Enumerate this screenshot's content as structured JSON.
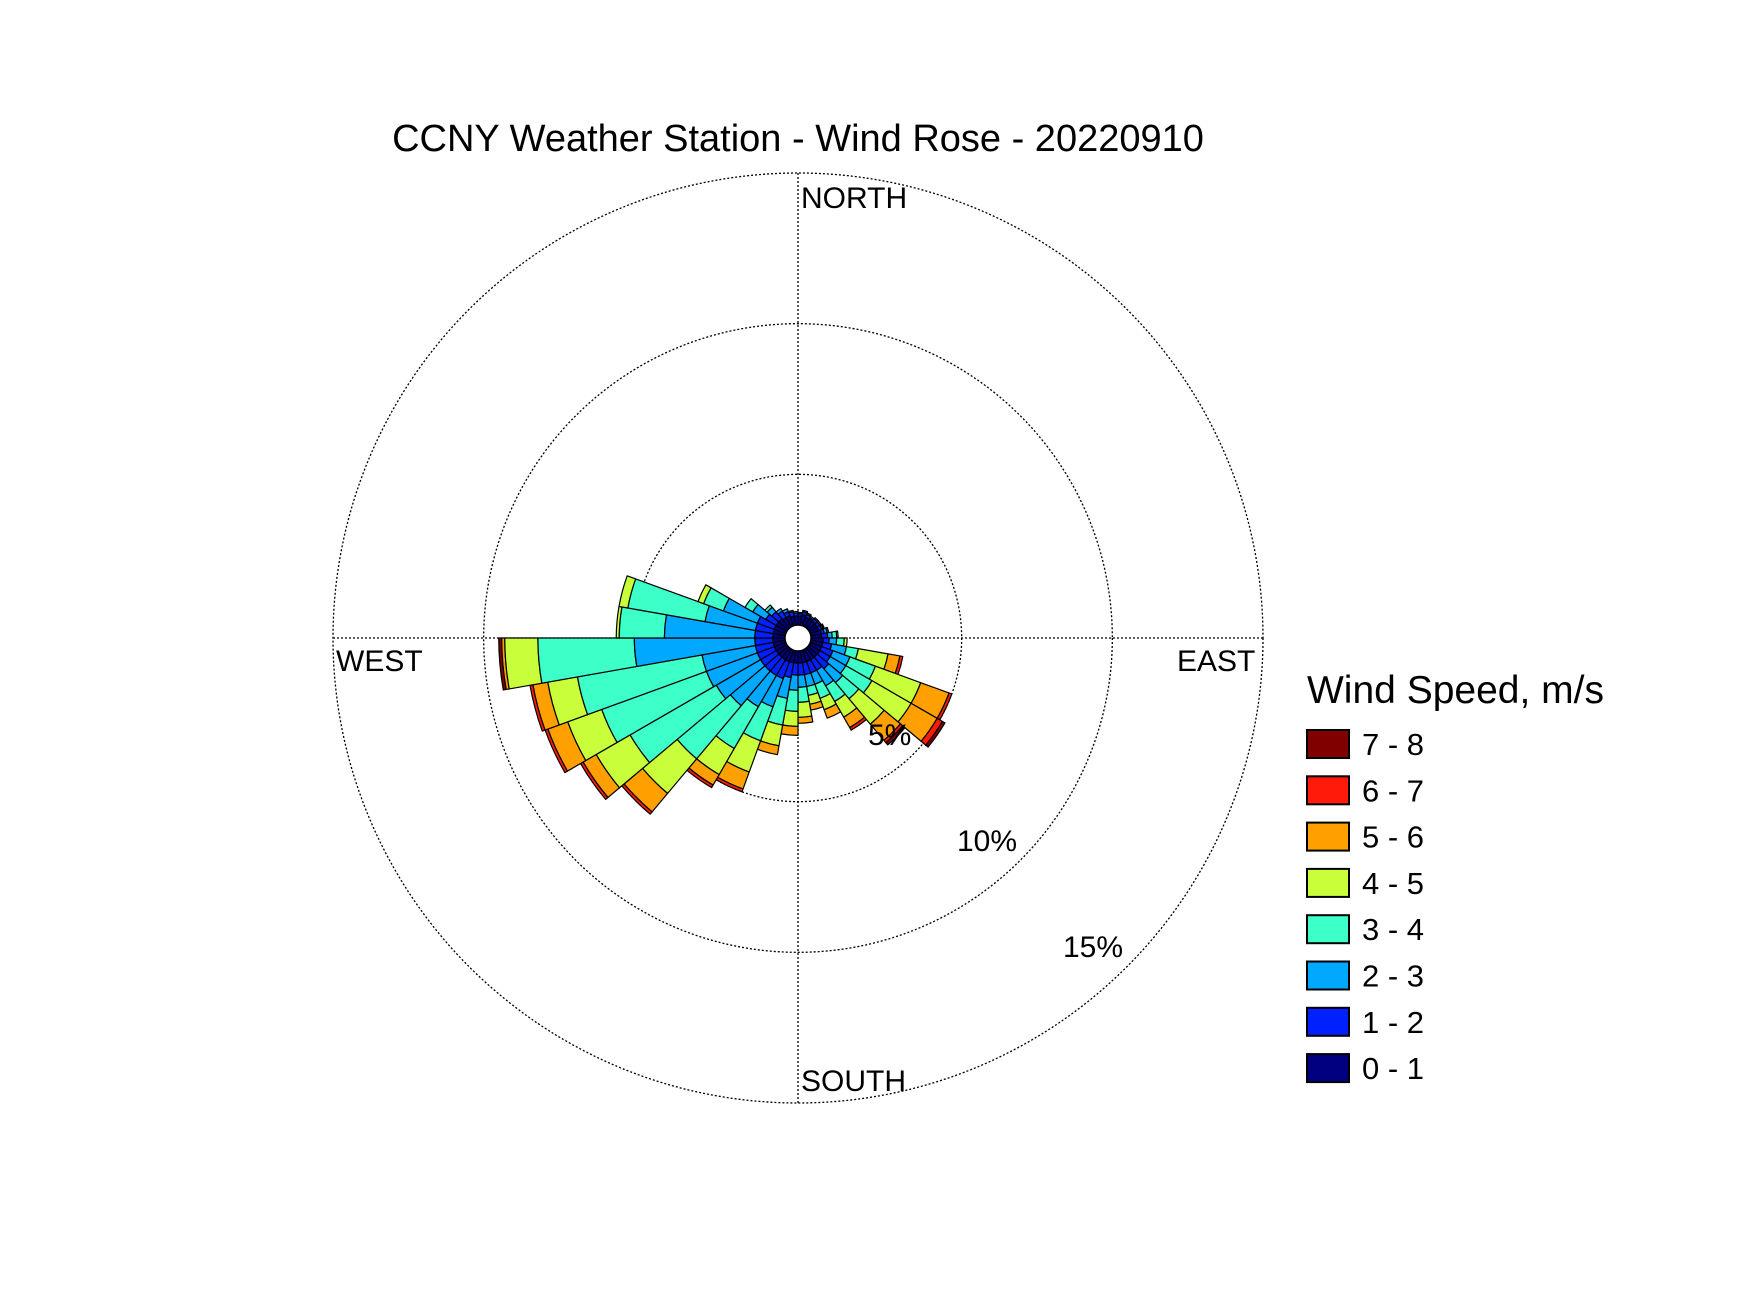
{
  "chart_data": {
    "type": "wind-rose",
    "title": "CCNY Weather Station - Wind Rose - 20220910",
    "direction_labels": {
      "north": "NORTH",
      "east": "EAST",
      "south": "SOUTH",
      "west": "WEST"
    },
    "radial_ticks": [
      {
        "value": 5,
        "label": "5%"
      },
      {
        "value": 10,
        "label": "10%"
      },
      {
        "value": 15,
        "label": "15%"
      }
    ],
    "rmax": 15,
    "grid": true,
    "legend": {
      "title": "Wind Speed, m/s",
      "position": "right",
      "bins": [
        {
          "label": "7 - 8",
          "color": "#800000"
        },
        {
          "label": "6 - 7",
          "color": "#ff1a0a"
        },
        {
          "label": "5 - 6",
          "color": "#ffa000"
        },
        {
          "label": "4 - 5",
          "color": "#c8ff3a"
        },
        {
          "label": "3 - 4",
          "color": "#3dffc8"
        },
        {
          "label": "2 - 3",
          "color": "#00a8ff"
        },
        {
          "label": "1 - 2",
          "color": "#0020ff"
        },
        {
          "label": "0 - 1",
          "color": "#000080"
        }
      ]
    },
    "bin_colors": [
      "#000080",
      "#0020ff",
      "#00a8ff",
      "#3dffc8",
      "#c8ff3a",
      "#ffa000",
      "#ff1a0a",
      "#800000"
    ],
    "sector_width_deg": 10,
    "sectors": [
      {
        "dir": 5,
        "cumulative": [
          0.3,
          0.38,
          0.42,
          0.42,
          0.42,
          0.42,
          0.42,
          0.42
        ]
      },
      {
        "dir": 15,
        "cumulative": [
          0.35,
          0.45,
          0.5,
          0.5,
          0.5,
          0.5,
          0.5,
          0.5
        ]
      },
      {
        "dir": 25,
        "cumulative": [
          0.3,
          0.4,
          0.45,
          0.45,
          0.45,
          0.45,
          0.45,
          0.45
        ]
      },
      {
        "dir": 35,
        "cumulative": [
          0.3,
          0.35,
          0.4,
          0.4,
          0.4,
          0.4,
          0.4,
          0.4
        ]
      },
      {
        "dir": 45,
        "cumulative": [
          0.3,
          0.4,
          0.45,
          0.45,
          0.45,
          0.45,
          0.45,
          0.45
        ]
      },
      {
        "dir": 55,
        "cumulative": [
          0.3,
          0.4,
          0.45,
          0.45,
          0.45,
          0.45,
          0.45,
          0.45
        ]
      },
      {
        "dir": 65,
        "cumulative": [
          0.3,
          0.4,
          0.45,
          0.48,
          0.5,
          0.5,
          0.5,
          0.5
        ]
      },
      {
        "dir": 75,
        "cumulative": [
          0.35,
          0.45,
          0.55,
          0.6,
          0.6,
          0.6,
          0.6,
          0.6
        ]
      },
      {
        "dir": 85,
        "cumulative": [
          0.35,
          0.55,
          0.7,
          0.85,
          0.9,
          0.9,
          0.9,
          0.9
        ]
      },
      {
        "dir": 95,
        "cumulative": [
          0.4,
          0.6,
          0.85,
          1.1,
          1.2,
          1.2,
          1.2,
          1.2
        ]
      },
      {
        "dir": 105,
        "cumulative": [
          0.4,
          0.7,
          1.2,
          1.6,
          2.6,
          3.0,
          3.1,
          3.1
        ]
      },
      {
        "dir": 115,
        "cumulative": [
          0.4,
          0.8,
          1.4,
          2.3,
          3.9,
          4.9,
          5.0,
          5.0
        ]
      },
      {
        "dir": 125,
        "cumulative": [
          0.4,
          0.8,
          1.4,
          2.4,
          3.9,
          4.9,
          5.1,
          5.2
        ]
      },
      {
        "dir": 135,
        "cumulative": [
          0.4,
          0.9,
          1.5,
          2.2,
          3.3,
          4.0,
          4.1,
          4.2
        ]
      },
      {
        "dir": 145,
        "cumulative": [
          0.4,
          0.8,
          1.4,
          2.0,
          2.6,
          3.0,
          3.1,
          3.1
        ]
      },
      {
        "dir": 155,
        "cumulative": [
          0.4,
          0.8,
          1.2,
          1.7,
          2.1,
          2.4,
          2.4,
          2.4
        ]
      },
      {
        "dir": 165,
        "cumulative": [
          0.4,
          0.8,
          1.2,
          1.5,
          1.8,
          2.0,
          2.0,
          2.0
        ]
      },
      {
        "dir": 175,
        "cumulative": [
          0.4,
          0.8,
          1.2,
          1.7,
          2.2,
          2.4,
          2.4,
          2.4
        ]
      },
      {
        "dir": 185,
        "cumulative": [
          0.4,
          0.8,
          1.3,
          2.0,
          2.5,
          2.8,
          2.8,
          2.8
        ]
      },
      {
        "dir": 195,
        "cumulative": [
          0.4,
          0.9,
          1.6,
          2.5,
          3.2,
          3.5,
          3.5,
          3.5
        ]
      },
      {
        "dir": 205,
        "cumulative": [
          0.4,
          1.0,
          2.0,
          3.2,
          4.3,
          4.9,
          5.0,
          5.0
        ]
      },
      {
        "dir": 215,
        "cumulative": [
          0.4,
          1.0,
          2.2,
          3.8,
          4.8,
          5.2,
          5.3,
          5.3
        ]
      },
      {
        "dir": 225,
        "cumulative": [
          0.4,
          1.0,
          2.5,
          4.8,
          6.3,
          7.1,
          7.2,
          7.2
        ]
      },
      {
        "dir": 235,
        "cumulative": [
          0.4,
          1.0,
          2.7,
          6.0,
          7.3,
          7.8,
          7.9,
          7.9
        ]
      },
      {
        "dir": 245,
        "cumulative": [
          0.4,
          1.0,
          2.8,
          6.5,
          7.7,
          8.4,
          8.5,
          8.5
        ]
      },
      {
        "dir": 255,
        "cumulative": [
          0.4,
          1.0,
          2.8,
          7.0,
          8.0,
          8.5,
          8.6,
          8.6
        ]
      },
      {
        "dir": 265,
        "cumulative": [
          0.4,
          1.0,
          5.0,
          8.2,
          9.3,
          9.4,
          9.4,
          9.5
        ]
      },
      {
        "dir": 275,
        "cumulative": [
          0.4,
          1.0,
          4.0,
          5.5,
          5.6,
          5.6,
          5.6,
          5.6
        ]
      },
      {
        "dir": 285,
        "cumulative": [
          0.4,
          1.0,
          2.7,
          5.3,
          5.6,
          5.6,
          5.6,
          5.6
        ]
      },
      {
        "dir": 295,
        "cumulative": [
          0.4,
          1.0,
          2.2,
          2.9,
          3.1,
          3.1,
          3.1,
          3.1
        ]
      },
      {
        "dir": 305,
        "cumulative": [
          0.4,
          0.8,
          1.3,
          1.6,
          1.6,
          1.6,
          1.6,
          1.6
        ]
      },
      {
        "dir": 315,
        "cumulative": [
          0.4,
          0.7,
          0.9,
          1.0,
          1.0,
          1.0,
          1.0,
          1.0
        ]
      },
      {
        "dir": 325,
        "cumulative": [
          0.35,
          0.6,
          0.7,
          0.7,
          0.7,
          0.7,
          0.7,
          0.7
        ]
      },
      {
        "dir": 335,
        "cumulative": [
          0.35,
          0.5,
          0.6,
          0.6,
          0.6,
          0.6,
          0.6,
          0.6
        ]
      },
      {
        "dir": 345,
        "cumulative": [
          0.3,
          0.45,
          0.5,
          0.5,
          0.5,
          0.5,
          0.5,
          0.5
        ]
      },
      {
        "dir": 355,
        "cumulative": [
          0.3,
          0.4,
          0.45,
          0.45,
          0.45,
          0.45,
          0.45,
          0.45
        ]
      }
    ]
  }
}
